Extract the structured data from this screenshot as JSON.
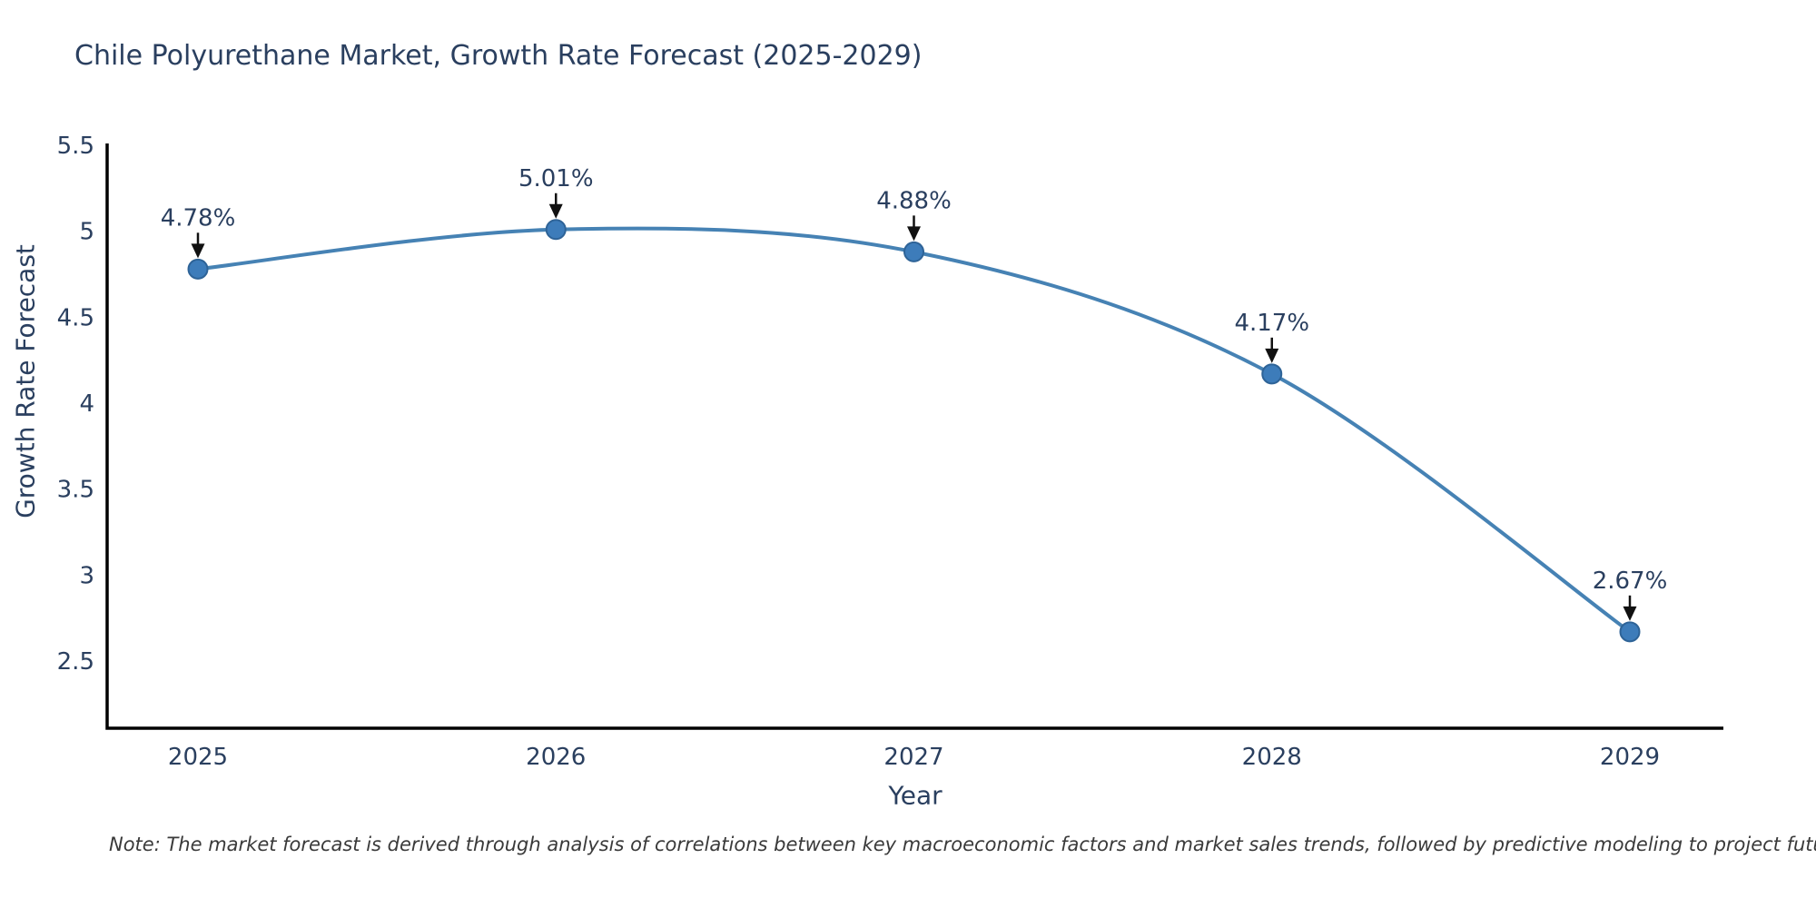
{
  "page": {
    "note": "Note: The market forecast is derived through analysis of correlations between key macroeconomic factors and market sales trends, followed by predictive modeling to project future sales"
  },
  "chart_data": {
    "type": "line",
    "title": "Chile Polyurethane Market, Growth Rate Forecast (2025-2029)",
    "xlabel": "Year",
    "ylabel": "Growth Rate Forecast",
    "x": [
      2025,
      2026,
      2027,
      2028,
      2029
    ],
    "xtick_labels": [
      "2025",
      "2026",
      "2027",
      "2028",
      "2029"
    ],
    "series": [
      {
        "name": "Growth Rate Forecast",
        "values": [
          4.78,
          5.01,
          4.88,
          4.17,
          2.67
        ]
      }
    ],
    "point_labels": [
      "4.78%",
      "5.01%",
      "4.88%",
      "4.17%",
      "2.67%"
    ],
    "yticks": [
      5.5,
      5,
      4.5,
      4,
      3.5,
      3,
      2.5
    ],
    "ytick_labels": [
      "5.5",
      "5",
      "4.5",
      "4",
      "3.5",
      "3",
      "2.5"
    ],
    "ylim": [
      2.11,
      5.51
    ],
    "grid": false,
    "legend": false,
    "line_shape": "spline",
    "annotation_style": "value label with black down-arrow to each data point",
    "colors": {
      "line": "#4682b4",
      "marker_fill": "#3d7cba",
      "marker_edge": "#2e6397",
      "axis": "#000000",
      "text": "#2a3f5f",
      "arrow": "#111111",
      "note": "#3a3a3a",
      "background": "#ffffff"
    }
  }
}
